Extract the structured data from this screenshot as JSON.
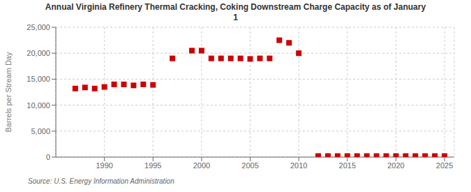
{
  "chart_data": {
    "type": "scatter",
    "title": "Annual Virginia Refinery Thermal Cracking, Coking Downstream Charge Capacity as of January\n1",
    "ylabel": "Barrels per Stream Day",
    "annotations": [
      "Source: U.S. Energy Information Administration"
    ],
    "x": [
      1987,
      1988,
      1989,
      1990,
      1991,
      1992,
      1993,
      1994,
      1995,
      1997,
      1999,
      2000,
      2001,
      2002,
      2003,
      2004,
      2005,
      2006,
      2007,
      2008,
      2009,
      2010,
      2012,
      2013,
      2014,
      2015,
      2016,
      2017,
      2018,
      2019,
      2020,
      2021,
      2022,
      2023,
      2024,
      2025
    ],
    "values": [
      13200,
      13400,
      13200,
      13500,
      14000,
      14000,
      13800,
      14000,
      13900,
      19000,
      20500,
      20500,
      19000,
      19000,
      19000,
      19000,
      18900,
      19000,
      19000,
      22500,
      22000,
      20000,
      200,
      200,
      200,
      200,
      200,
      200,
      200,
      200,
      200,
      200,
      200,
      200,
      200,
      200
    ],
    "color": "#cc0000",
    "marker": "square",
    "xlim": [
      1985,
      2026
    ],
    "ylim": [
      0,
      25000
    ],
    "xticks": [
      1990,
      1995,
      2000,
      2005,
      2010,
      2015,
      2020,
      2025
    ],
    "yticks": [
      0,
      {
        "value": 5000,
        "label": "5,000"
      },
      {
        "value": 10000,
        "label": "10,000"
      },
      {
        "value": 15000,
        "label": "15,000"
      },
      {
        "value": 20000,
        "label": "20,000"
      },
      {
        "value": 25000,
        "label": "25,000"
      }
    ],
    "grid": true
  }
}
